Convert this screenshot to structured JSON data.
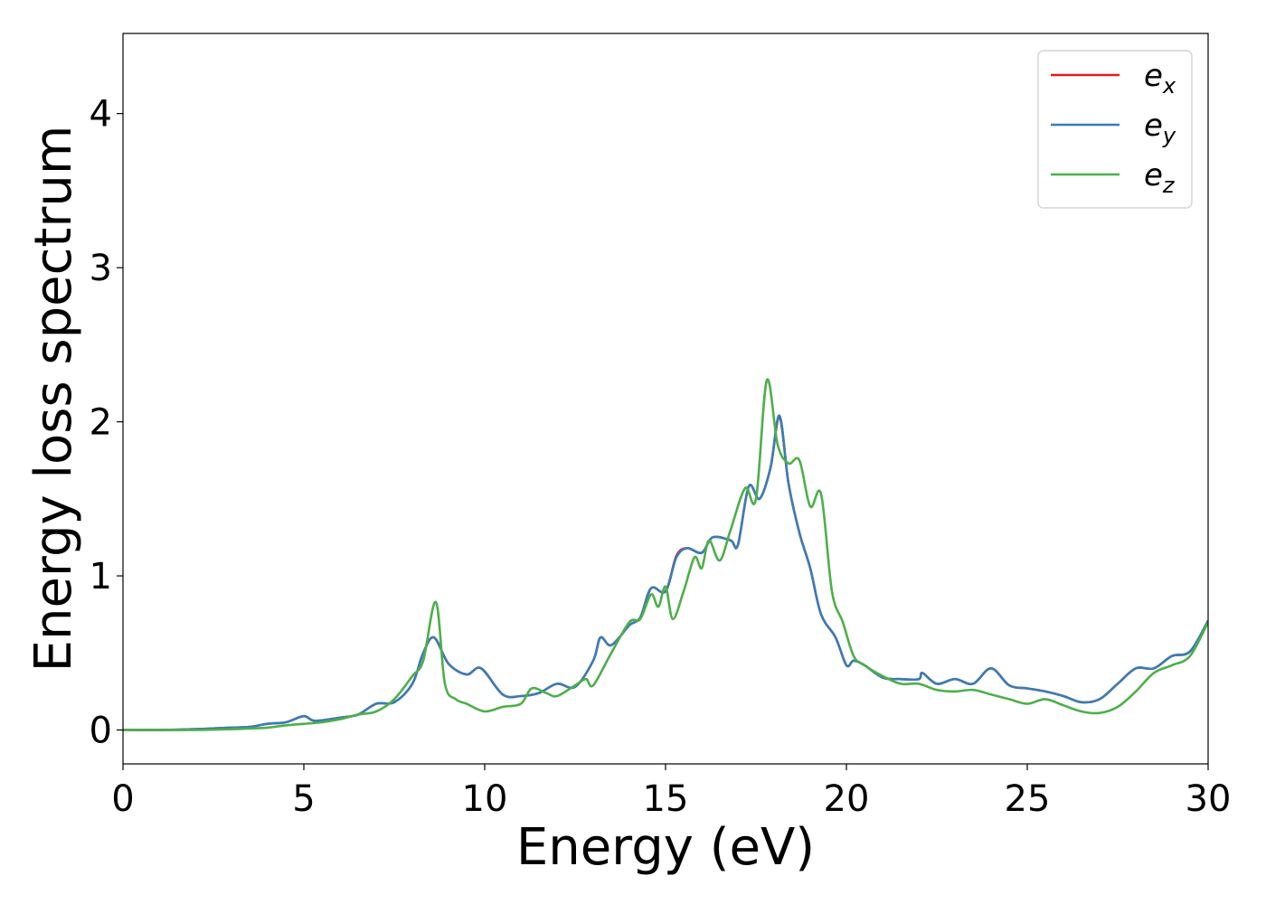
{
  "chart_data": {
    "type": "line",
    "xlabel": "Energy (eV)",
    "ylabel": "Energy loss spectrum",
    "xlim": [
      0,
      30
    ],
    "ylim": [
      -0.22,
      4.52
    ],
    "xticks": [
      "0",
      "5",
      "10",
      "15",
      "20",
      "25",
      "30"
    ],
    "yticks": [
      "0",
      "1",
      "2",
      "3",
      "4"
    ],
    "grid": false,
    "legend_position": "top-right",
    "series": [
      {
        "name": "e_x",
        "legend_base": "e",
        "legend_sub": "x",
        "color": "#e41a1c",
        "x": [
          0,
          1,
          2,
          3,
          3.5,
          4,
          4.5,
          5,
          5.3,
          6,
          6.5,
          7,
          7.5,
          8,
          8.3,
          8.6,
          9,
          9.5,
          9.9,
          10.5,
          11,
          11.5,
          12,
          12.5,
          13,
          13.2,
          13.5,
          14,
          14.3,
          14.6,
          15,
          15.3,
          15.6,
          16,
          16.3,
          16.8,
          17,
          17.3,
          17.6,
          17.9,
          18.15,
          18.4,
          18.7,
          19,
          19.3,
          19.7,
          20,
          20.2,
          20.5,
          21,
          21.5,
          22,
          22.1,
          22.5,
          23,
          23.5,
          24,
          24.5,
          25,
          25.5,
          26,
          26.5,
          27,
          27.5,
          28,
          28.5,
          29,
          29.5,
          30
        ],
        "y": [
          0,
          0,
          0.005,
          0.015,
          0.02,
          0.04,
          0.05,
          0.09,
          0.06,
          0.08,
          0.1,
          0.17,
          0.18,
          0.3,
          0.5,
          0.6,
          0.43,
          0.36,
          0.4,
          0.23,
          0.22,
          0.24,
          0.3,
          0.28,
          0.45,
          0.6,
          0.55,
          0.68,
          0.73,
          0.92,
          0.9,
          1.13,
          1.18,
          1.15,
          1.25,
          1.23,
          1.2,
          1.58,
          1.5,
          1.7,
          2.03,
          1.6,
          1.28,
          1.05,
          0.75,
          0.6,
          0.42,
          0.45,
          0.42,
          0.34,
          0.33,
          0.33,
          0.37,
          0.3,
          0.33,
          0.3,
          0.4,
          0.29,
          0.27,
          0.25,
          0.22,
          0.18,
          0.2,
          0.3,
          0.4,
          0.4,
          0.48,
          0.51,
          0.71
        ]
      },
      {
        "name": "e_y",
        "legend_base": "e",
        "legend_sub": "y",
        "color": "#377eb8",
        "x": [
          0,
          1,
          2,
          3,
          3.5,
          4,
          4.5,
          5,
          5.3,
          6,
          6.5,
          7,
          7.5,
          8,
          8.3,
          8.6,
          9,
          9.5,
          9.9,
          10.5,
          11,
          11.5,
          12,
          12.5,
          13,
          13.2,
          13.5,
          14,
          14.3,
          14.6,
          15,
          15.3,
          15.6,
          16,
          16.3,
          16.8,
          17,
          17.3,
          17.6,
          17.9,
          18.15,
          18.4,
          18.7,
          19,
          19.3,
          19.7,
          20,
          20.2,
          20.5,
          21,
          21.5,
          22,
          22.1,
          22.5,
          23,
          23.5,
          24,
          24.5,
          25,
          25.5,
          26,
          26.5,
          27,
          27.5,
          28,
          28.5,
          29,
          29.5,
          30
        ],
        "y": [
          0,
          0,
          0.005,
          0.015,
          0.02,
          0.04,
          0.05,
          0.09,
          0.06,
          0.08,
          0.1,
          0.17,
          0.18,
          0.3,
          0.5,
          0.6,
          0.43,
          0.36,
          0.4,
          0.23,
          0.22,
          0.24,
          0.3,
          0.28,
          0.45,
          0.6,
          0.55,
          0.68,
          0.73,
          0.92,
          0.9,
          1.12,
          1.18,
          1.15,
          1.25,
          1.23,
          1.2,
          1.58,
          1.5,
          1.7,
          2.04,
          1.6,
          1.28,
          1.05,
          0.75,
          0.6,
          0.42,
          0.45,
          0.42,
          0.34,
          0.33,
          0.33,
          0.37,
          0.3,
          0.33,
          0.3,
          0.4,
          0.29,
          0.27,
          0.25,
          0.22,
          0.18,
          0.2,
          0.3,
          0.4,
          0.4,
          0.48,
          0.51,
          0.71
        ]
      },
      {
        "name": "e_z",
        "legend_base": "e",
        "legend_sub": "z",
        "color": "#4daf4a",
        "x": [
          0,
          1,
          2,
          3,
          3.5,
          4,
          4.5,
          5,
          5.5,
          6,
          6.5,
          7,
          7.5,
          8,
          8.3,
          8.65,
          8.9,
          9.2,
          9.5,
          10,
          10.5,
          11,
          11.3,
          11.7,
          12,
          12.5,
          12.8,
          13,
          13.5,
          14,
          14.3,
          14.6,
          14.8,
          15,
          15.2,
          15.5,
          15.8,
          16,
          16.2,
          16.5,
          16.8,
          17.2,
          17.5,
          17.8,
          18.1,
          18.4,
          18.7,
          19,
          19.3,
          19.6,
          19.9,
          20.2,
          20.5,
          21,
          21.5,
          22,
          22.5,
          23,
          23.5,
          24,
          24.5,
          25,
          25.5,
          26,
          26.5,
          27,
          27.5,
          28,
          28.5,
          29,
          29.5,
          30
        ],
        "y": [
          0,
          0,
          0,
          0.005,
          0.01,
          0.015,
          0.03,
          0.04,
          0.05,
          0.07,
          0.1,
          0.12,
          0.2,
          0.35,
          0.45,
          0.83,
          0.3,
          0.2,
          0.17,
          0.12,
          0.15,
          0.17,
          0.27,
          0.24,
          0.22,
          0.29,
          0.33,
          0.29,
          0.5,
          0.7,
          0.72,
          0.88,
          0.8,
          0.93,
          0.72,
          0.9,
          1.12,
          1.05,
          1.23,
          1.1,
          1.3,
          1.57,
          1.5,
          2.27,
          1.85,
          1.73,
          1.75,
          1.45,
          1.53,
          0.9,
          0.7,
          0.48,
          0.42,
          0.35,
          0.3,
          0.3,
          0.26,
          0.25,
          0.26,
          0.23,
          0.2,
          0.17,
          0.2,
          0.16,
          0.12,
          0.11,
          0.15,
          0.25,
          0.37,
          0.42,
          0.48,
          0.7
        ]
      }
    ]
  }
}
